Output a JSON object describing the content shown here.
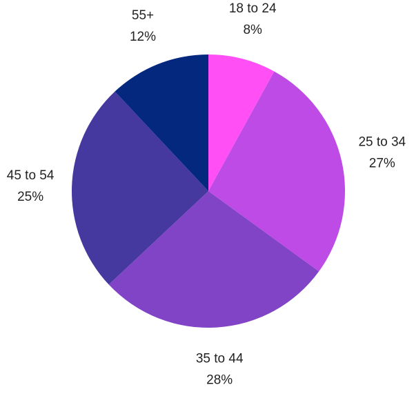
{
  "chart_data": {
    "type": "pie",
    "title": "",
    "start_angle_deg": 0,
    "direction": "clockwise",
    "legend": "none",
    "slices": [
      {
        "label": "18 to 24",
        "value": 8,
        "value_label": "8%",
        "color": "#ff4ff5"
      },
      {
        "label": "25 to 34",
        "value": 27,
        "value_label": "27%",
        "color": "#bf4be6"
      },
      {
        "label": "35 to 44",
        "value": 28,
        "value_label": "28%",
        "color": "#8244c6"
      },
      {
        "label": "45 to 54",
        "value": 25,
        "value_label": "25%",
        "color": "#45389e"
      },
      {
        "label": "55+",
        "value": 12,
        "value_label": "12%",
        "color": "#03287e"
      }
    ]
  }
}
